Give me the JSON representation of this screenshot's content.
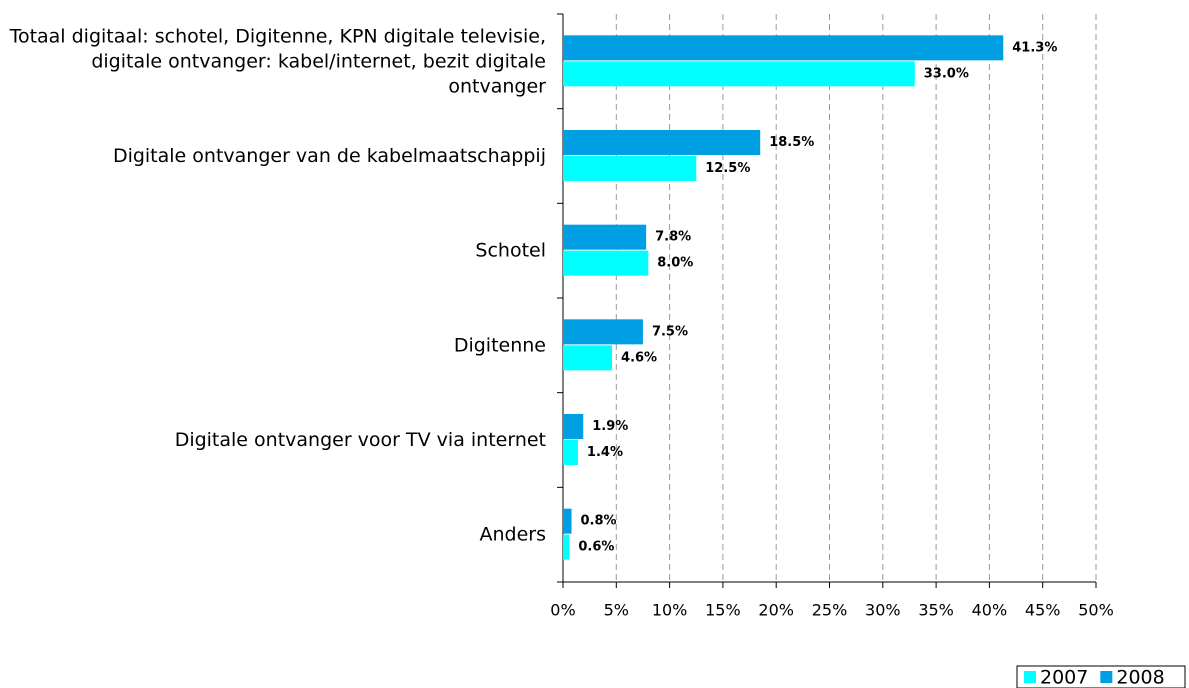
{
  "chart_data": {
    "type": "bar",
    "orientation": "horizontal",
    "categories": [
      "Totaal digitaal: schotel, Digitenne, KPN digitale televisie, digitale ontvanger: kabel/internet, bezit digitale ontvanger",
      "Digitale ontvanger van de kabelmaatschappij",
      "Schotel",
      "Digitenne",
      "Digitale ontvanger voor TV via internet",
      "Anders"
    ],
    "series": [
      {
        "name": "2007",
        "color": "#00ffff",
        "values": [
          33.0,
          12.5,
          8.0,
          4.6,
          1.4,
          0.6
        ],
        "value_labels": [
          "33.0%",
          "12.5%",
          "8.0%",
          "4.6%",
          "1.4%",
          "0.6%"
        ]
      },
      {
        "name": "2008",
        "color": "#009fe3",
        "values": [
          41.3,
          18.5,
          7.8,
          7.5,
          1.9,
          0.8
        ],
        "value_labels": [
          "41.3%",
          "18.5%",
          "7.8%",
          "7.5%",
          "1.9%",
          "0.8%"
        ]
      }
    ],
    "xlim": [
      0,
      50
    ],
    "xticks": [
      {
        "value": 0,
        "label": "0%"
      },
      {
        "value": 5,
        "label": "5%"
      },
      {
        "value": 10,
        "label": "10%"
      },
      {
        "value": 15,
        "label": "15%"
      },
      {
        "value": 20,
        "label": "20%"
      },
      {
        "value": 25,
        "label": "25%"
      },
      {
        "value": 30,
        "label": "30%"
      },
      {
        "value": 35,
        "label": "35%"
      },
      {
        "value": 40,
        "label": "40%"
      },
      {
        "value": 45,
        "label": "45%"
      },
      {
        "value": 50,
        "label": "50%"
      }
    ],
    "grid": true,
    "legend": "bottom-right"
  }
}
